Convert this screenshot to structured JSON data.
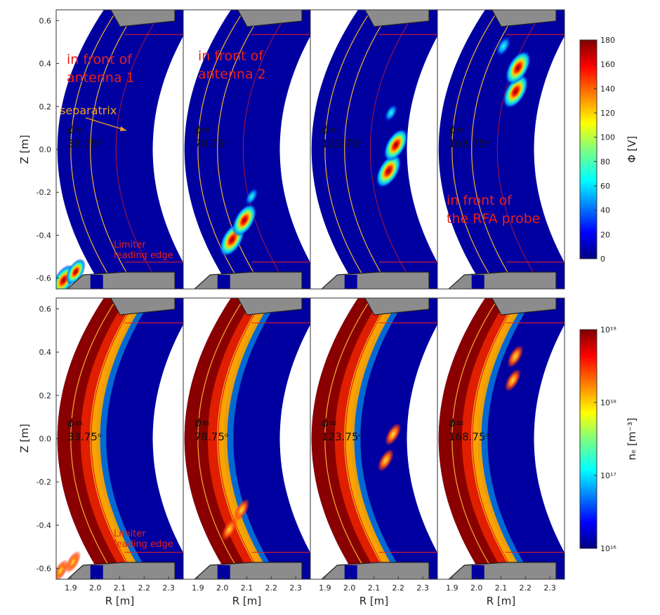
{
  "chart_data": {
    "type": "heatmap",
    "axes": {
      "xlabel": "R [m]",
      "ylabel": "Z [m]",
      "xlim": [
        1.84,
        2.36
      ],
      "ylim": [
        -0.65,
        0.65
      ],
      "xticks": [
        "1.9",
        "2.0",
        "2.1",
        "2.2",
        "2.3"
      ],
      "yticks": [
        "0.6",
        "0.4",
        "0.2",
        "0.0",
        "-0.2",
        "-0.4",
        "-0.6"
      ]
    },
    "columns": [
      {
        "phi_label": "ϕ=",
        "phi_value": "33.75ᵒ",
        "phi": 33.75
      },
      {
        "phi_label": "ϕ=",
        "phi_value": "78.75ᵒ",
        "phi": 78.75
      },
      {
        "phi_label": "ϕ=",
        "phi_value": "123.75ᵒ",
        "phi": 123.75
      },
      {
        "phi_label": "ϕ=",
        "phi_value": "168.75ᵒ",
        "phi": 168.75
      }
    ],
    "rows": [
      {
        "quantity": "potential",
        "colorbar": {
          "label": "Φ [V]",
          "min": 0,
          "max": 180,
          "scale": "linear",
          "ticks": [
            "0",
            "20",
            "40",
            "60",
            "80",
            "100",
            "120",
            "140",
            "160",
            "180"
          ]
        },
        "annotations": {
          "antenna1": [
            "in front of",
            "antenna 1"
          ],
          "antenna2": [
            "in front of",
            "antenna 2"
          ],
          "separatrix": "separatrix",
          "limiter": [
            "Limiter",
            "leading edge"
          ],
          "rfa": [
            "in front of",
            "the RFA probe"
          ]
        },
        "peaks": [
          {
            "col": 0,
            "R": 1.87,
            "Z": -0.61,
            "value": 160
          },
          {
            "col": 0,
            "R": 1.92,
            "Z": -0.57,
            "value": 120
          },
          {
            "col": 1,
            "R": 2.04,
            "Z": -0.42,
            "value": 180
          },
          {
            "col": 1,
            "R": 2.09,
            "Z": -0.33,
            "value": 170
          },
          {
            "col": 1,
            "R": 2.12,
            "Z": -0.22,
            "value": 60
          },
          {
            "col": 2,
            "R": 2.16,
            "Z": -0.1,
            "value": 180
          },
          {
            "col": 2,
            "R": 2.19,
            "Z": 0.02,
            "value": 170
          },
          {
            "col": 2,
            "R": 2.17,
            "Z": 0.17,
            "value": 60
          },
          {
            "col": 3,
            "R": 2.16,
            "Z": 0.27,
            "value": 180
          },
          {
            "col": 3,
            "R": 2.17,
            "Z": 0.38,
            "value": 180
          },
          {
            "col": 3,
            "R": 2.11,
            "Z": 0.48,
            "value": 80
          }
        ]
      },
      {
        "quantity": "density",
        "colorbar": {
          "label": "nₑ [m⁻³]",
          "min": 1e+16,
          "max": 1e+19,
          "scale": "log",
          "ticks": [
            "10¹⁶",
            "10¹⁷",
            "10¹⁸",
            "10¹⁹"
          ]
        },
        "annotations": {
          "limiter": [
            "Limiter",
            "leading edge"
          ]
        }
      }
    ]
  }
}
